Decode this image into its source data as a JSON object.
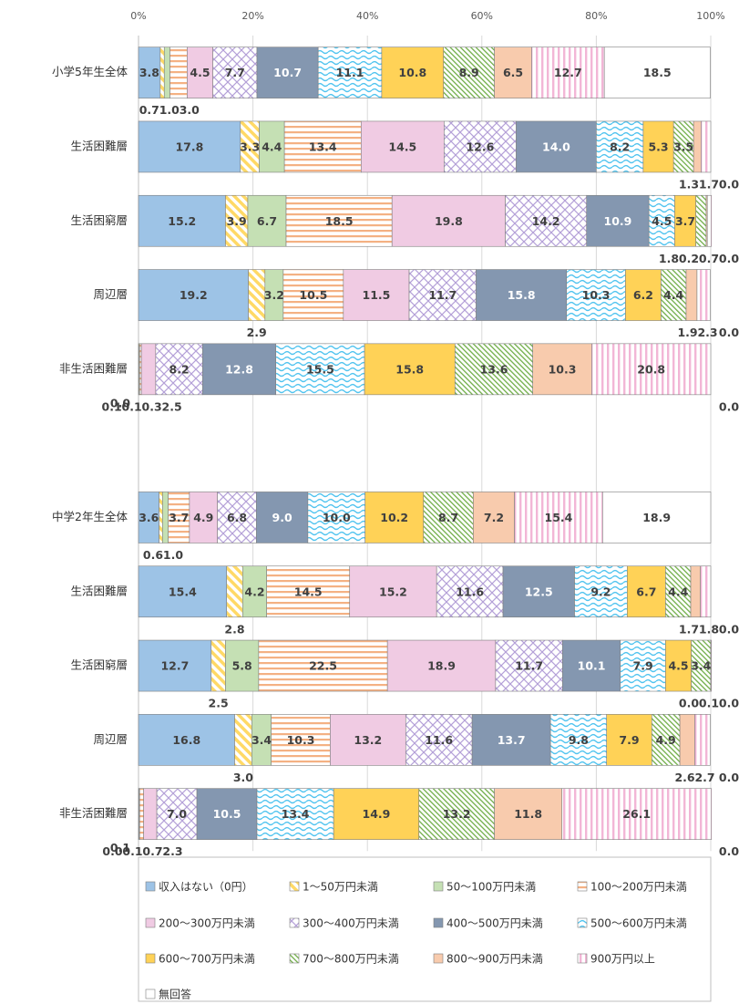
{
  "chart_data": {
    "type": "bar",
    "orientation": "horizontal",
    "stacked": true,
    "categories": [
      "小学5年生全体",
      "生活困難層",
      "生活困窮層",
      "周辺層",
      "非生活困難層",
      null,
      "中学2年生全体",
      "生活困難層",
      "生活困窮層",
      "周辺層",
      "非生活困難層"
    ],
    "xlim": [
      0,
      100
    ],
    "xticks": [
      {
        "value": 0,
        "label": "0%"
      },
      {
        "value": 20,
        "label": "20%"
      },
      {
        "value": 40,
        "label": "40%"
      },
      {
        "value": 60,
        "label": "60%"
      },
      {
        "value": 80,
        "label": "80%"
      },
      {
        "value": 100,
        "label": "100%"
      }
    ],
    "grid": true,
    "legend": "bottom",
    "series": [
      {
        "name": "収入はない（0円）",
        "color": "#9dc3e6",
        "pattern": "solid",
        "values": [
          3.8,
          17.8,
          15.2,
          19.2,
          0,
          null,
          3.6,
          15.4,
          12.7,
          16.8,
          0.1
        ],
        "value_labels": [
          "3.8",
          "17.8",
          "15.2",
          "19.2",
          "0.0",
          null,
          "3.6",
          "15.4",
          "12.7",
          "16.8",
          "0.1"
        ]
      },
      {
        "name": "1～50万円未満",
        "color": "#ffd966",
        "pattern": "diagonal-stripes",
        "values": [
          0.7,
          3.3,
          3.9,
          2.9,
          0.1,
          null,
          0.6,
          2.8,
          2.5,
          3,
          0
        ],
        "value_labels": [
          "0.7",
          "3.3",
          "3.9",
          "2.9",
          "0.1",
          null,
          "0.6",
          "2.8",
          "2.5",
          "3.0",
          "0.0"
        ]
      },
      {
        "name": "50～100万円未満",
        "color": "#c5e0b4",
        "pattern": "solid",
        "values": [
          1,
          4.4,
          6.7,
          3.2,
          0.1,
          null,
          1,
          4.2,
          5.8,
          3.4,
          0.1
        ],
        "value_labels": [
          "1.0",
          "4.4",
          "6.7",
          "3.2",
          "0.1",
          null,
          "1.0",
          "4.2",
          "5.8",
          "3.4",
          "0.1"
        ]
      },
      {
        "name": "100～200万円未満",
        "color": "#f4b183",
        "pattern": "horizontal-stripes",
        "values": [
          3,
          13.4,
          18.5,
          10.5,
          0.3,
          null,
          3.7,
          14.5,
          22.5,
          10.3,
          0.7
        ],
        "value_labels": [
          "3.0",
          "13.4",
          "18.5",
          "10.5",
          "0.3",
          null,
          "3.7",
          "14.5",
          "22.5",
          "10.3",
          "0.7"
        ]
      },
      {
        "name": "200～300万円未満",
        "color": "#f0cbe3",
        "pattern": "solid",
        "values": [
          4.5,
          14.5,
          19.8,
          11.5,
          2.5,
          null,
          4.9,
          15.2,
          18.9,
          13.2,
          2.3
        ],
        "value_labels": [
          "4.5",
          "14.5",
          "19.8",
          "11.5",
          "2.5",
          null,
          "4.9",
          "15.2",
          "18.9",
          "13.2",
          "2.3"
        ]
      },
      {
        "name": "300～400万円未満",
        "color": "#b4a0d8",
        "pattern": "diamonds",
        "values": [
          7.7,
          12.6,
          14.2,
          11.7,
          8.2,
          null,
          6.8,
          11.6,
          11.7,
          11.6,
          7
        ],
        "value_labels": [
          "7.7",
          "12.6",
          "14.2",
          "11.7",
          "8.2",
          null,
          "6.8",
          "11.6",
          "11.7",
          "11.6",
          "7.0"
        ]
      },
      {
        "name": "400～500万円未満",
        "color": "#8497b0",
        "pattern": "solid",
        "values": [
          10.7,
          14,
          10.9,
          15.8,
          12.8,
          null,
          9,
          12.5,
          10.1,
          13.7,
          10.5
        ],
        "value_labels": [
          "10.7",
          "14.0",
          "10.9",
          "15.8",
          "12.8",
          null,
          "9.0",
          "12.5",
          "10.1",
          "13.7",
          "10.5"
        ]
      },
      {
        "name": "500～600万円未満",
        "color": "#4fc3ef",
        "pattern": "waves",
        "values": [
          11.1,
          8.2,
          4.5,
          10.3,
          15.5,
          null,
          10,
          9.2,
          7.9,
          9.8,
          13.4
        ],
        "value_labels": [
          "11.1",
          "8.2",
          "4.5",
          "10.3",
          "15.5",
          null,
          "10.0",
          "9.2",
          "7.9",
          "9.8",
          "13.4"
        ]
      },
      {
        "name": "600～700万円未満",
        "color": "#ffd257",
        "pattern": "solid",
        "values": [
          10.8,
          5.3,
          3.7,
          6.2,
          15.8,
          null,
          10.2,
          6.7,
          4.5,
          7.9,
          14.9
        ],
        "value_labels": [
          "10.8",
          "5.3",
          "3.7",
          "6.2",
          "15.8",
          null,
          "10.2",
          "6.7",
          "4.5",
          "7.9",
          "14.9"
        ]
      },
      {
        "name": "700～800万円未満",
        "color": "#70ad47",
        "pattern": "hatch",
        "values": [
          8.9,
          3.5,
          1.8,
          4.4,
          13.6,
          null,
          8.7,
          4.4,
          3.4,
          4.9,
          13.2
        ],
        "value_labels": [
          "8.9",
          "3.5",
          "1.8",
          "4.4",
          "13.6",
          null,
          "8.7",
          "4.4",
          "3.4",
          "4.9",
          "13.2"
        ]
      },
      {
        "name": "800～900万円未満",
        "color": "#f8cbad",
        "pattern": "solid",
        "values": [
          6.5,
          1.3,
          0.2,
          1.9,
          10.3,
          null,
          7.2,
          1.7,
          0,
          2.6,
          11.8
        ],
        "value_labels": [
          "6.5",
          "1.3",
          "0.2",
          "1.9",
          "10.3",
          null,
          "7.2",
          "1.7",
          "0.0",
          "2.6",
          "11.8"
        ]
      },
      {
        "name": "900万円以上",
        "color": "#f2b6d6",
        "pattern": "vertical-stripes",
        "values": [
          12.7,
          1.7,
          0.7,
          2.3,
          20.8,
          null,
          15.4,
          1.8,
          0.1,
          2.7,
          26.1
        ],
        "value_labels": [
          "12.7",
          "1.7",
          "0.7",
          "2.3",
          "20.8",
          null,
          "15.4",
          "1.8",
          "0.1",
          "2.7",
          "26.1"
        ]
      },
      {
        "name": "無回答",
        "color": "#ffffff",
        "pattern": "solid",
        "values": [
          18.5,
          0,
          0,
          0,
          0,
          null,
          18.9,
          0,
          0,
          0,
          0
        ],
        "value_labels": [
          "18.5",
          "0.0",
          "0.0",
          "0.0",
          "0.0",
          null,
          "18.9",
          "0.0",
          "0.0",
          "0.0",
          "0.0"
        ]
      }
    ]
  }
}
